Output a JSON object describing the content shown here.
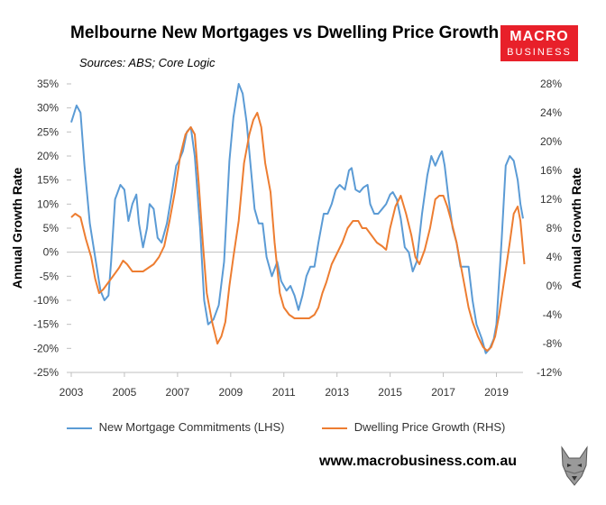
{
  "header": {
    "title": "Melbourne New Mortgages vs Dwelling Price Growth",
    "subtitle": "Sources: ABS; Core Logic"
  },
  "logo": {
    "line1": "MACRO",
    "line2": "BUSINESS",
    "color": "#e8202a"
  },
  "website": "www.macrobusiness.com.au",
  "colors": {
    "mortgages": "#5b9bd5",
    "prices": "#ed7d31",
    "zero_line": "#bfbfbf"
  },
  "chart_data": {
    "type": "line",
    "title": "Melbourne New Mortgages vs Dwelling Price Growth",
    "subtitle": "Sources: ABS; Core Logic",
    "ylabel_left": "Annual Growth Rate",
    "ylabel_right": "Annual Growth Rate",
    "x_ticks": [
      "2003",
      "2005",
      "2007",
      "2009",
      "2011",
      "2013",
      "2015",
      "2017",
      "2019"
    ],
    "x_range": [
      2003,
      2020
    ],
    "y_left": {
      "range": [
        -25,
        35
      ],
      "ticks": [
        "35%",
        "30%",
        "25%",
        "20%",
        "15%",
        "10%",
        "5%",
        "0%",
        "-5%",
        "-10%",
        "-15%",
        "-20%",
        "-25%"
      ]
    },
    "y_right": {
      "range": [
        -12,
        28
      ],
      "ticks": [
        "28%",
        "24%",
        "20%",
        "16%",
        "12%",
        "8%",
        "4%",
        "0%",
        "-4%",
        "-8%",
        "-12%"
      ]
    },
    "legend_position": "bottom",
    "series": [
      {
        "name": "New Mortgage Commitments (LHS)",
        "axis": "left",
        "points": [
          [
            2003.0,
            27
          ],
          [
            2003.2,
            30.5
          ],
          [
            2003.35,
            29
          ],
          [
            2003.5,
            18
          ],
          [
            2003.7,
            6
          ],
          [
            2003.9,
            -1
          ],
          [
            2004.1,
            -8
          ],
          [
            2004.25,
            -10
          ],
          [
            2004.4,
            -9
          ],
          [
            2004.5,
            -2
          ],
          [
            2004.65,
            11
          ],
          [
            2004.85,
            14
          ],
          [
            2005.0,
            13
          ],
          [
            2005.15,
            6.5
          ],
          [
            2005.3,
            10
          ],
          [
            2005.45,
            12
          ],
          [
            2005.55,
            6
          ],
          [
            2005.7,
            1
          ],
          [
            2005.85,
            5
          ],
          [
            2005.95,
            10
          ],
          [
            2006.1,
            9
          ],
          [
            2006.25,
            3
          ],
          [
            2006.4,
            2
          ],
          [
            2006.6,
            6
          ],
          [
            2006.75,
            11
          ],
          [
            2006.95,
            18
          ],
          [
            2007.05,
            19
          ],
          [
            2007.2,
            21
          ],
          [
            2007.35,
            25
          ],
          [
            2007.5,
            26
          ],
          [
            2007.65,
            20
          ],
          [
            2007.85,
            5
          ],
          [
            2008.0,
            -10
          ],
          [
            2008.15,
            -15
          ],
          [
            2008.35,
            -14
          ],
          [
            2008.55,
            -11
          ],
          [
            2008.75,
            -2
          ],
          [
            2008.95,
            19
          ],
          [
            2009.1,
            28
          ],
          [
            2009.3,
            35
          ],
          [
            2009.45,
            33
          ],
          [
            2009.6,
            27
          ],
          [
            2009.75,
            18
          ],
          [
            2009.9,
            9
          ],
          [
            2010.05,
            6
          ],
          [
            2010.2,
            6
          ],
          [
            2010.35,
            -1
          ],
          [
            2010.55,
            -5
          ],
          [
            2010.75,
            -2
          ],
          [
            2010.9,
            -6
          ],
          [
            2011.1,
            -8
          ],
          [
            2011.25,
            -7
          ],
          [
            2011.4,
            -9
          ],
          [
            2011.55,
            -12
          ],
          [
            2011.7,
            -9
          ],
          [
            2011.85,
            -5
          ],
          [
            2012.0,
            -3
          ],
          [
            2012.15,
            -3
          ],
          [
            2012.3,
            2
          ],
          [
            2012.5,
            8
          ],
          [
            2012.65,
            8
          ],
          [
            2012.8,
            10
          ],
          [
            2012.95,
            13
          ],
          [
            2013.1,
            14
          ],
          [
            2013.3,
            13
          ],
          [
            2013.45,
            17
          ],
          [
            2013.55,
            17.5
          ],
          [
            2013.7,
            13
          ],
          [
            2013.85,
            12.5
          ],
          [
            2014.0,
            13.5
          ],
          [
            2014.15,
            14
          ],
          [
            2014.25,
            10
          ],
          [
            2014.4,
            8
          ],
          [
            2014.55,
            8
          ],
          [
            2014.7,
            9
          ],
          [
            2014.85,
            10
          ],
          [
            2015.0,
            12
          ],
          [
            2015.1,
            12.5
          ],
          [
            2015.25,
            11
          ],
          [
            2015.4,
            7
          ],
          [
            2015.55,
            1
          ],
          [
            2015.7,
            0
          ],
          [
            2015.85,
            -4
          ],
          [
            2016.0,
            -2
          ],
          [
            2016.2,
            8
          ],
          [
            2016.4,
            16
          ],
          [
            2016.55,
            20
          ],
          [
            2016.7,
            18
          ],
          [
            2016.85,
            20
          ],
          [
            2016.95,
            21
          ],
          [
            2017.05,
            18
          ],
          [
            2017.2,
            11
          ],
          [
            2017.35,
            5
          ],
          [
            2017.5,
            2
          ],
          [
            2017.65,
            -3
          ],
          [
            2017.8,
            -3
          ],
          [
            2017.95,
            -3
          ],
          [
            2018.1,
            -10
          ],
          [
            2018.25,
            -15
          ],
          [
            2018.45,
            -18
          ],
          [
            2018.6,
            -21
          ],
          [
            2018.75,
            -20
          ],
          [
            2018.9,
            -18
          ],
          [
            2019.0,
            -15
          ],
          [
            2019.2,
            3
          ],
          [
            2019.35,
            18
          ],
          [
            2019.5,
            20
          ],
          [
            2019.65,
            19
          ],
          [
            2019.8,
            15
          ],
          [
            2019.9,
            10
          ],
          [
            2020.0,
            7
          ]
        ]
      },
      {
        "name": "Dwelling Price Growth (RHS)",
        "axis": "right",
        "points": [
          [
            2003.0,
            9.5
          ],
          [
            2003.15,
            10
          ],
          [
            2003.35,
            9.5
          ],
          [
            2003.55,
            6.5
          ],
          [
            2003.75,
            4
          ],
          [
            2003.9,
            1
          ],
          [
            2004.05,
            -1
          ],
          [
            2004.2,
            -0.5
          ],
          [
            2004.4,
            0.5
          ],
          [
            2004.6,
            1.5
          ],
          [
            2004.8,
            2.5
          ],
          [
            2004.95,
            3.5
          ],
          [
            2005.1,
            3
          ],
          [
            2005.3,
            2
          ],
          [
            2005.5,
            2
          ],
          [
            2005.7,
            2
          ],
          [
            2005.9,
            2.5
          ],
          [
            2006.1,
            3
          ],
          [
            2006.3,
            4
          ],
          [
            2006.5,
            5.5
          ],
          [
            2006.7,
            9
          ],
          [
            2006.9,
            13
          ],
          [
            2007.1,
            18
          ],
          [
            2007.3,
            21
          ],
          [
            2007.5,
            22
          ],
          [
            2007.65,
            21
          ],
          [
            2007.8,
            14
          ],
          [
            2007.95,
            6
          ],
          [
            2008.1,
            -1
          ],
          [
            2008.3,
            -5
          ],
          [
            2008.5,
            -8
          ],
          [
            2008.65,
            -7
          ],
          [
            2008.8,
            -5
          ],
          [
            2008.95,
            0
          ],
          [
            2009.1,
            4
          ],
          [
            2009.3,
            9
          ],
          [
            2009.5,
            17
          ],
          [
            2009.7,
            21
          ],
          [
            2009.85,
            23
          ],
          [
            2010.0,
            24
          ],
          [
            2010.15,
            22
          ],
          [
            2010.3,
            17
          ],
          [
            2010.5,
            13
          ],
          [
            2010.65,
            6
          ],
          [
            2010.85,
            -1
          ],
          [
            2011.0,
            -3
          ],
          [
            2011.2,
            -4
          ],
          [
            2011.4,
            -4.5
          ],
          [
            2011.6,
            -4.5
          ],
          [
            2011.8,
            -4.5
          ],
          [
            2011.95,
            -4.5
          ],
          [
            2012.15,
            -4
          ],
          [
            2012.3,
            -3
          ],
          [
            2012.45,
            -1
          ],
          [
            2012.6,
            0.5
          ],
          [
            2012.8,
            3
          ],
          [
            2013.0,
            4.5
          ],
          [
            2013.2,
            6
          ],
          [
            2013.4,
            8
          ],
          [
            2013.6,
            9
          ],
          [
            2013.8,
            9
          ],
          [
            2013.95,
            8
          ],
          [
            2014.1,
            8
          ],
          [
            2014.3,
            7
          ],
          [
            2014.5,
            6
          ],
          [
            2014.7,
            5.5
          ],
          [
            2014.85,
            5
          ],
          [
            2015.0,
            8
          ],
          [
            2015.2,
            11
          ],
          [
            2015.4,
            12.5
          ],
          [
            2015.6,
            10
          ],
          [
            2015.8,
            7
          ],
          [
            2015.95,
            4
          ],
          [
            2016.1,
            3
          ],
          [
            2016.3,
            5
          ],
          [
            2016.5,
            8
          ],
          [
            2016.7,
            12
          ],
          [
            2016.85,
            12.5
          ],
          [
            2017.0,
            12.5
          ],
          [
            2017.15,
            11
          ],
          [
            2017.3,
            9
          ],
          [
            2017.5,
            6
          ],
          [
            2017.65,
            3
          ],
          [
            2017.8,
            0
          ],
          [
            2017.95,
            -3
          ],
          [
            2018.1,
            -5
          ],
          [
            2018.3,
            -7
          ],
          [
            2018.5,
            -8.5
          ],
          [
            2018.65,
            -9
          ],
          [
            2018.8,
            -8.5
          ],
          [
            2018.95,
            -7
          ],
          [
            2019.1,
            -4
          ],
          [
            2019.3,
            1
          ],
          [
            2019.5,
            6
          ],
          [
            2019.65,
            10
          ],
          [
            2019.8,
            11
          ],
          [
            2019.9,
            9
          ],
          [
            2020.0,
            5
          ],
          [
            2020.05,
            3
          ]
        ]
      }
    ]
  }
}
